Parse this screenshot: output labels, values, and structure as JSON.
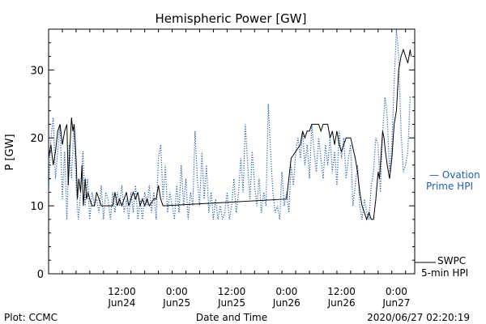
{
  "chart_data": {
    "type": "line",
    "title": "Hemispheric Power [GW]",
    "xlabel": "Date and Time",
    "ylabel": "P [GW]",
    "ylim": [
      0,
      36
    ],
    "xlim_hours": [
      -4,
      76
    ],
    "yticks": [
      0,
      10,
      20,
      30
    ],
    "x_ticks": [
      {
        "hour": 12,
        "time": "12:00",
        "date": "Jun24"
      },
      {
        "hour": 24,
        "time": "0:00",
        "date": "Jun25"
      },
      {
        "hour": 36,
        "time": "12:00",
        "date": "Jun25"
      },
      {
        "hour": 48,
        "time": "0:00",
        "date": "Jun26"
      },
      {
        "hour": 60,
        "time": "12:00",
        "date": "Jun26"
      },
      {
        "hour": 72,
        "time": "0:00",
        "date": "Jun27"
      }
    ],
    "legend": [
      {
        "series": "ovation",
        "lines": [
          "— Ovation",
          "Prime HPI"
        ],
        "color": "#1f5fb0"
      },
      {
        "series": "swpc",
        "lines": [
          "SWPC",
          "5-min HPI"
        ],
        "color": "#000000"
      }
    ],
    "footer": {
      "left": "Plot: CCMC",
      "right": "2020/06/27 02:20:19"
    },
    "series": [
      {
        "id": "swpc",
        "color": "#000000",
        "style": "solid",
        "points": [
          [
            -4,
            17
          ],
          [
            -3.5,
            19
          ],
          [
            -3,
            16
          ],
          [
            -2.5,
            18
          ],
          [
            -2,
            21
          ],
          [
            -1.5,
            22
          ],
          [
            -1,
            19
          ],
          [
            -0.5,
            21
          ],
          [
            0,
            22
          ],
          [
            0.3,
            13
          ],
          [
            0.6,
            18
          ],
          [
            1,
            23
          ],
          [
            1.3,
            21
          ],
          [
            1.6,
            22
          ],
          [
            2,
            17
          ],
          [
            2.3,
            11
          ],
          [
            2.6,
            14
          ],
          [
            3,
            12
          ],
          [
            3.3,
            16
          ],
          [
            3.6,
            10
          ],
          [
            4,
            14
          ],
          [
            4.3,
            11
          ],
          [
            4.6,
            12
          ],
          [
            5,
            11
          ],
          [
            5.5,
            10
          ],
          [
            6,
            10
          ],
          [
            6.5,
            12
          ],
          [
            7,
            11
          ],
          [
            7.5,
            10
          ],
          [
            8,
            10
          ],
          [
            9,
            10
          ],
          [
            10,
            10
          ],
          [
            10.5,
            12
          ],
          [
            11,
            10
          ],
          [
            11.5,
            11
          ],
          [
            12,
            10
          ],
          [
            12.5,
            11
          ],
          [
            13,
            12
          ],
          [
            13.5,
            10
          ],
          [
            14,
            11
          ],
          [
            14.5,
            12
          ],
          [
            15,
            11
          ],
          [
            15.5,
            12
          ],
          [
            16,
            10
          ],
          [
            16.5,
            11
          ],
          [
            17,
            10
          ],
          [
            17.5,
            11
          ],
          [
            18,
            10
          ],
          [
            19,
            11
          ],
          [
            19.5,
            11
          ],
          [
            20,
            13
          ],
          [
            20.5,
            11
          ],
          [
            21,
            10
          ],
          [
            48,
            11
          ],
          [
            48.5,
            14
          ],
          [
            49,
            17
          ],
          [
            50,
            18
          ],
          [
            51,
            19
          ],
          [
            51.5,
            21
          ],
          [
            52,
            20
          ],
          [
            52.5,
            21
          ],
          [
            53,
            21
          ],
          [
            53.5,
            22
          ],
          [
            54,
            22
          ],
          [
            55,
            22
          ],
          [
            55.5,
            21
          ],
          [
            56,
            22
          ],
          [
            57,
            22
          ],
          [
            57.5,
            20
          ],
          [
            58,
            21
          ],
          [
            58.5,
            19
          ],
          [
            59,
            21
          ],
          [
            59.5,
            19
          ],
          [
            60,
            18
          ],
          [
            60.5,
            19
          ],
          [
            61,
            20
          ],
          [
            62,
            20
          ],
          [
            63,
            17
          ],
          [
            63.5,
            15
          ],
          [
            64,
            12
          ],
          [
            64.5,
            10
          ],
          [
            65,
            9
          ],
          [
            65.5,
            8
          ],
          [
            66,
            9
          ],
          [
            66.5,
            8
          ],
          [
            67,
            8
          ],
          [
            67.5,
            11
          ],
          [
            68,
            15
          ],
          [
            68.3,
            14
          ],
          [
            68.6,
            17
          ],
          [
            69,
            21
          ],
          [
            69.3,
            20
          ],
          [
            69.6,
            18
          ],
          [
            70,
            16
          ],
          [
            70.5,
            14
          ],
          [
            71,
            17
          ],
          [
            71.5,
            22
          ],
          [
            72,
            24
          ],
          [
            72.5,
            30
          ],
          [
            73,
            32
          ],
          [
            73.5,
            33
          ],
          [
            74,
            32
          ],
          [
            74.5,
            31
          ],
          [
            75,
            33
          ],
          [
            75.2,
            32
          ]
        ]
      },
      {
        "id": "ovation",
        "color": "#1f5fb0",
        "style": "dotted",
        "points": [
          [
            -4,
            12
          ],
          [
            -3.5,
            20
          ],
          [
            -3,
            23
          ],
          [
            -2.5,
            14
          ],
          [
            -2,
            18
          ],
          [
            -1.5,
            22
          ],
          [
            -1,
            11
          ],
          [
            -0.5,
            18
          ],
          [
            0,
            8
          ],
          [
            0.5,
            19
          ],
          [
            1,
            14
          ],
          [
            1.5,
            22
          ],
          [
            2,
            13
          ],
          [
            2.5,
            8
          ],
          [
            3,
            12
          ],
          [
            3.5,
            18
          ],
          [
            4,
            10
          ],
          [
            4.5,
            14
          ],
          [
            5,
            8
          ],
          [
            5.5,
            12
          ],
          [
            6,
            10
          ],
          [
            6.5,
            11
          ],
          [
            7,
            9
          ],
          [
            7.5,
            13
          ],
          [
            8,
            8
          ],
          [
            8.5,
            12
          ],
          [
            9,
            11
          ],
          [
            9.5,
            8
          ],
          [
            10,
            12
          ],
          [
            10.5,
            9
          ],
          [
            11,
            12
          ],
          [
            11.5,
            10
          ],
          [
            12,
            13
          ],
          [
            12.5,
            9
          ],
          [
            13,
            11
          ],
          [
            13.5,
            8
          ],
          [
            14,
            12
          ],
          [
            14.5,
            9
          ],
          [
            15,
            13
          ],
          [
            15.5,
            8
          ],
          [
            16,
            11
          ],
          [
            16.5,
            8
          ],
          [
            17,
            12
          ],
          [
            17.5,
            10
          ],
          [
            18,
            13
          ],
          [
            18.5,
            9
          ],
          [
            19,
            12
          ],
          [
            19.5,
            8
          ],
          [
            20,
            17
          ],
          [
            20.5,
            19
          ],
          [
            21,
            11
          ],
          [
            21.5,
            16
          ],
          [
            22,
            9
          ],
          [
            22.5,
            12
          ],
          [
            23,
            10
          ],
          [
            23.5,
            8
          ],
          [
            24,
            13
          ],
          [
            24.5,
            9
          ],
          [
            25,
            16
          ],
          [
            25.5,
            10
          ],
          [
            26,
            14
          ],
          [
            26.5,
            8
          ],
          [
            27,
            12
          ],
          [
            27.5,
            10
          ],
          [
            28,
            21
          ],
          [
            28.5,
            14
          ],
          [
            29,
            10
          ],
          [
            29.5,
            18
          ],
          [
            30,
            11
          ],
          [
            30.5,
            16
          ],
          [
            31,
            9
          ],
          [
            31.5,
            12
          ],
          [
            32,
            8
          ],
          [
            32.5,
            11
          ],
          [
            33,
            8
          ],
          [
            33.5,
            10
          ],
          [
            34,
            8
          ],
          [
            34.5,
            9
          ],
          [
            35,
            12
          ],
          [
            35.5,
            8
          ],
          [
            36,
            10
          ],
          [
            36.5,
            14
          ],
          [
            37,
            9
          ],
          [
            37.5,
            12
          ],
          [
            38,
            17
          ],
          [
            38.5,
            12
          ],
          [
            39,
            22
          ],
          [
            39.5,
            16
          ],
          [
            40,
            11
          ],
          [
            40.5,
            18
          ],
          [
            41,
            13
          ],
          [
            41.5,
            10
          ],
          [
            42,
            14
          ],
          [
            42.5,
            9
          ],
          [
            43,
            12
          ],
          [
            43.5,
            10
          ],
          [
            44,
            25
          ],
          [
            44.5,
            18
          ],
          [
            45,
            12
          ],
          [
            45.5,
            9
          ],
          [
            46,
            10
          ],
          [
            46.5,
            8
          ],
          [
            47,
            15
          ],
          [
            47.5,
            10
          ],
          [
            48,
            12
          ],
          [
            48.5,
            9
          ],
          [
            49,
            16
          ],
          [
            49.5,
            13
          ],
          [
            50,
            18
          ],
          [
            50.5,
            20
          ],
          [
            51,
            17
          ],
          [
            51.5,
            21
          ],
          [
            52,
            16
          ],
          [
            52.5,
            19
          ],
          [
            53,
            14
          ],
          [
            53.5,
            22
          ],
          [
            54,
            18
          ],
          [
            54.5,
            15
          ],
          [
            55,
            20
          ],
          [
            55.5,
            17
          ],
          [
            56,
            14
          ],
          [
            56.5,
            19
          ],
          [
            57,
            16
          ],
          [
            57.5,
            20
          ],
          [
            58,
            15
          ],
          [
            58.5,
            18
          ],
          [
            59,
            13
          ],
          [
            59.5,
            21
          ],
          [
            60,
            17
          ],
          [
            60.5,
            20
          ],
          [
            61,
            14
          ],
          [
            61.5,
            17
          ],
          [
            62,
            19
          ],
          [
            62.5,
            10
          ],
          [
            63,
            13
          ],
          [
            63.5,
            16
          ],
          [
            64,
            10
          ],
          [
            64.5,
            8
          ],
          [
            65,
            11
          ],
          [
            65.5,
            9
          ],
          [
            66,
            8
          ],
          [
            66.5,
            13
          ],
          [
            67,
            15
          ],
          [
            67.5,
            20
          ],
          [
            68,
            19
          ],
          [
            68.5,
            12
          ],
          [
            69,
            21
          ],
          [
            69.5,
            26
          ],
          [
            70,
            23
          ],
          [
            70.5,
            15
          ],
          [
            71,
            19
          ],
          [
            71.5,
            28
          ],
          [
            72,
            36
          ],
          [
            72.5,
            32
          ],
          [
            73,
            21
          ],
          [
            73.5,
            15
          ],
          [
            74,
            16
          ],
          [
            74.5,
            18
          ],
          [
            75,
            26
          ],
          [
            75.3,
            26
          ]
        ]
      }
    ]
  }
}
